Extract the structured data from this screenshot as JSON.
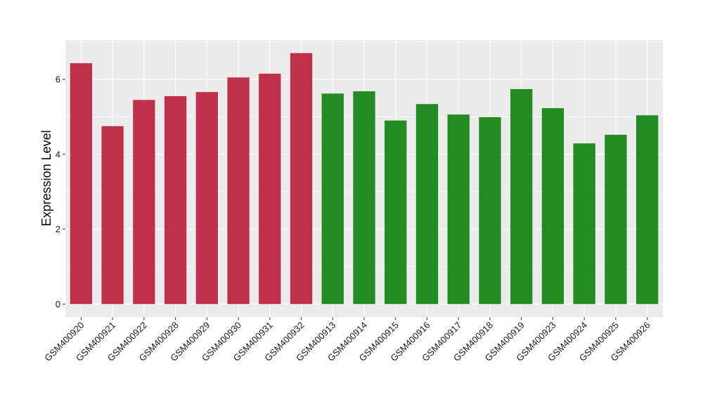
{
  "chart_data": {
    "type": "bar",
    "ylabel": "Expression Level",
    "xlabel": "",
    "title": "",
    "ylim": [
      -0.35,
      7.05
    ],
    "yticks": [
      0,
      2,
      4,
      6
    ],
    "grid": true,
    "legend": "none",
    "colors": {
      "group1": "#C1304A",
      "group2": "#228B22",
      "panel": "#EBEBEB",
      "grid": "#FFFFFF"
    },
    "categories": [
      "GSM400920",
      "GSM400921",
      "GSM400922",
      "GSM400928",
      "GSM400929",
      "GSM400930",
      "GSM400931",
      "GSM400932",
      "GSM400913",
      "GSM400914",
      "GSM400915",
      "GSM400916",
      "GSM400917",
      "GSM400918",
      "GSM400919",
      "GSM400923",
      "GSM400924",
      "GSM400925",
      "GSM400926"
    ],
    "values": [
      6.43,
      4.75,
      5.45,
      5.55,
      5.66,
      6.05,
      6.15,
      6.7,
      5.62,
      5.68,
      4.9,
      5.34,
      5.06,
      4.99,
      5.74,
      5.23,
      4.29,
      4.52,
      5.04
    ],
    "groups": [
      "group1",
      "group1",
      "group1",
      "group1",
      "group1",
      "group1",
      "group1",
      "group1",
      "group2",
      "group2",
      "group2",
      "group2",
      "group2",
      "group2",
      "group2",
      "group2",
      "group2",
      "group2",
      "group2"
    ]
  }
}
